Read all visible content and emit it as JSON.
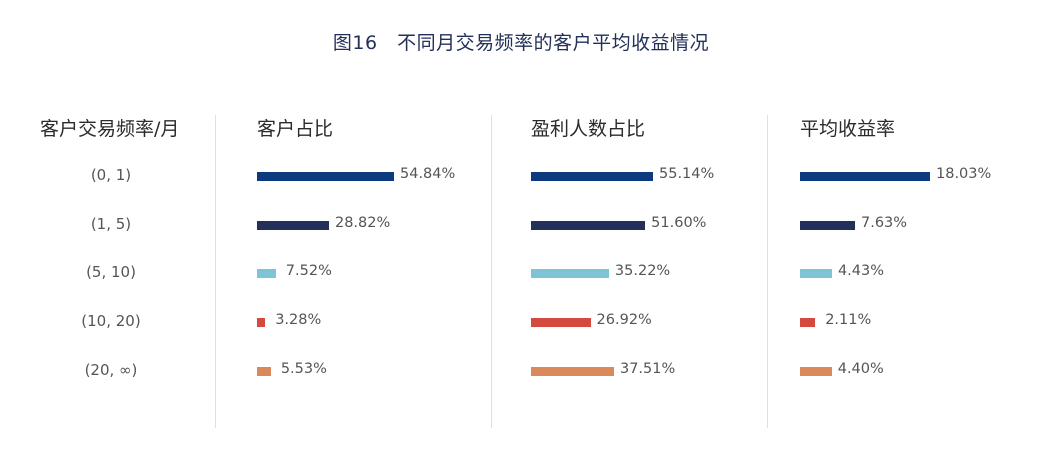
{
  "title": "图16　不同月交易频率的客户平均收益情况",
  "row_header": "客户交易频率/月",
  "colors": [
    "#0b3a7e",
    "#22305a",
    "#7ec3d6",
    "#d24b3e",
    "#d9895a"
  ],
  "chart_data": {
    "type": "bar",
    "orientation": "horizontal",
    "title": "图16　不同月交易频率的客户平均收益情况",
    "categories": [
      "(0, 1)",
      "(1, 5)",
      "(5, 10)",
      "(10, 20)",
      "(20, ∞)"
    ],
    "panels": [
      {
        "name": "客户占比",
        "values": [
          54.84,
          28.82,
          7.52,
          3.28,
          5.53
        ],
        "labels": [
          "54.84%",
          "28.82%",
          "7.52%",
          "3.28%",
          "5.53%"
        ]
      },
      {
        "name": "盈利人数占比",
        "values": [
          55.14,
          51.6,
          35.22,
          26.92,
          37.51
        ],
        "labels": [
          "55.14%",
          "51.60%",
          "35.22%",
          "26.92%",
          "37.51%"
        ]
      },
      {
        "name": "平均收益率",
        "values": [
          18.03,
          7.63,
          4.43,
          2.11,
          4.4
        ],
        "labels": [
          "18.03%",
          "7.63%",
          "4.43%",
          "2.11%",
          "4.40%"
        ]
      }
    ]
  }
}
